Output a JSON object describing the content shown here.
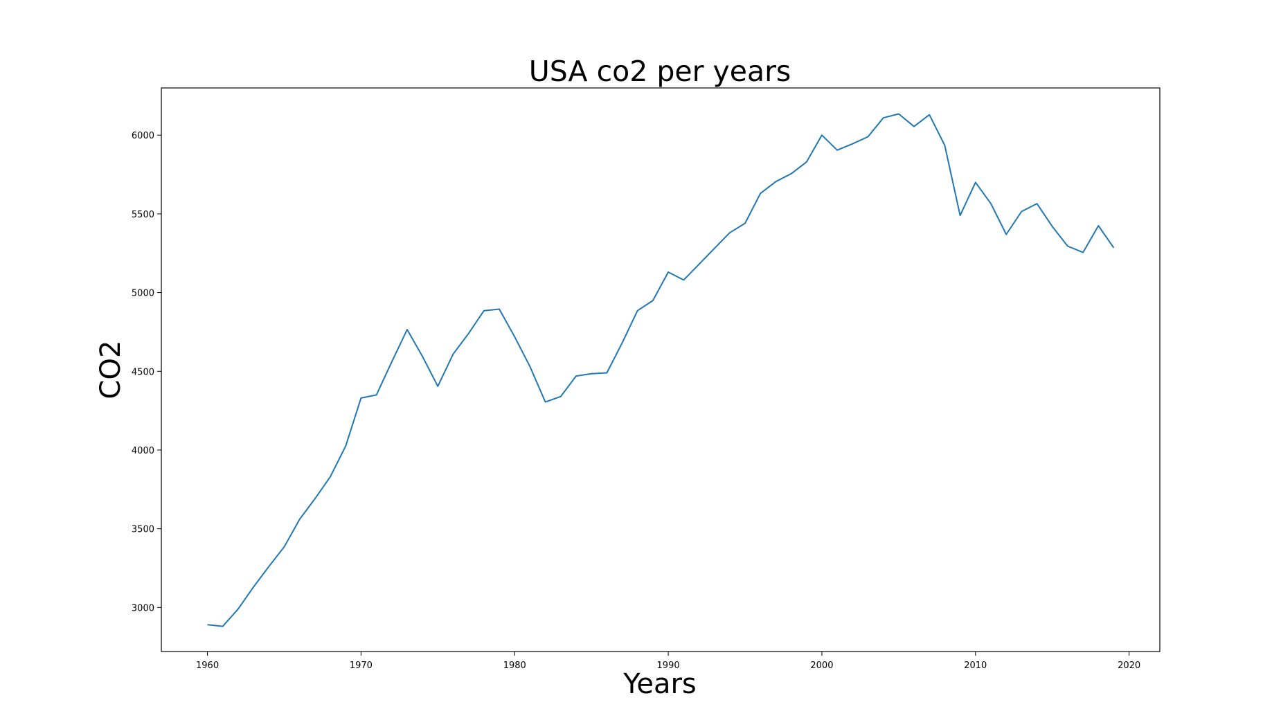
{
  "chart_data": {
    "type": "line",
    "title": "USA co2 per years",
    "xlabel": "Years",
    "ylabel": "CO2",
    "xlim": [
      1957,
      2022
    ],
    "ylim": [
      2720,
      6300
    ],
    "xticks": [
      1960,
      1970,
      1980,
      1990,
      2000,
      2010,
      2020
    ],
    "yticks": [
      3000,
      3500,
      4000,
      4500,
      5000,
      5500,
      6000
    ],
    "grid": false,
    "series_color": "#1f77b4",
    "series": [
      {
        "x": [
          1960,
          1961,
          1962,
          1963,
          1964,
          1965,
          1966,
          1967,
          1968,
          1969,
          1970,
          1971,
          1972,
          1973,
          1974,
          1975,
          1976,
          1977,
          1978,
          1979,
          1980,
          1981,
          1982,
          1983,
          1984,
          1985,
          1986,
          1987,
          1988,
          1989,
          1990,
          1991,
          1992,
          1993,
          1994,
          1995,
          1996,
          1997,
          1998,
          1999,
          2000,
          2001,
          2002,
          2003,
          2004,
          2005,
          2006,
          2007,
          2008,
          2009,
          2010,
          2011,
          2012,
          2013,
          2014,
          2015,
          2016,
          2017,
          2018,
          2019
        ],
        "values": [
          2890,
          2880,
          2990,
          3130,
          3260,
          3385,
          3560,
          3690,
          3830,
          4025,
          4330,
          4350,
          4560,
          4765,
          4595,
          4405,
          4610,
          4740,
          4885,
          4895,
          4720,
          4530,
          4305,
          4340,
          4470,
          4485,
          4490,
          4680,
          4885,
          4950,
          5130,
          5080,
          5180,
          5280,
          5380,
          5440,
          5630,
          5705,
          5755,
          5830,
          6000,
          5905,
          5945,
          5990,
          6110,
          6135,
          6055,
          6130,
          5935,
          5490,
          5700,
          5565,
          5370,
          5515,
          5565,
          5420,
          5295,
          5255,
          5425,
          5285
        ]
      }
    ]
  }
}
